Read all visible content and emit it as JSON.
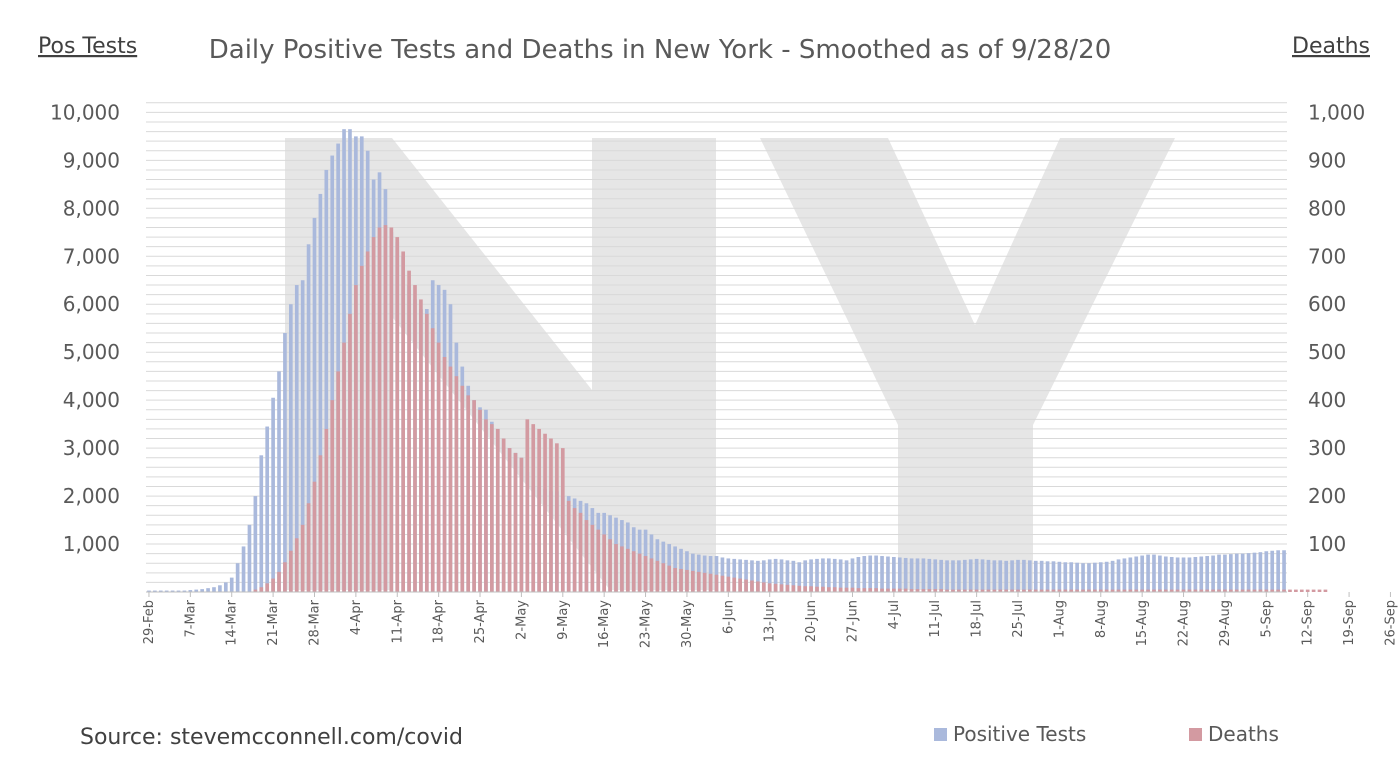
{
  "chart_data": {
    "type": "bar",
    "title": "Daily Positive Tests and Deaths in New York - Smoothed as of 9/28/20",
    "ylabel_left": "Pos Tests",
    "ylabel_right": "Deaths",
    "ylim_left": [
      0,
      10000
    ],
    "ylim_right": [
      0,
      1000
    ],
    "yticks_left": [
      "1,000",
      "2,000",
      "3,000",
      "4,000",
      "5,000",
      "6,000",
      "7,000",
      "8,000",
      "9,000",
      "10,000"
    ],
    "yticks_right": [
      "100",
      "200",
      "300",
      "400",
      "500",
      "600",
      "700",
      "800",
      "900",
      "1,000"
    ],
    "x_start": "29-Feb",
    "x_tick_labels": [
      "29-Feb",
      "7-Mar",
      "14-Mar",
      "21-Mar",
      "28-Mar",
      "4-Apr",
      "11-Apr",
      "18-Apr",
      "25-Apr",
      "2-May",
      "9-May",
      "16-May",
      "23-May",
      "30-May",
      "6-Jun",
      "13-Jun",
      "20-Jun",
      "27-Jun",
      "4-Jul",
      "11-Jul",
      "18-Jul",
      "25-Jul",
      "1-Aug",
      "8-Aug",
      "15-Aug",
      "22-Aug",
      "29-Aug",
      "5-Sep",
      "12-Sep",
      "19-Sep",
      "26-Sep"
    ],
    "grid": true,
    "legend_position": "bottom-right",
    "watermark": "NY",
    "series": [
      {
        "name": "Positive Tests",
        "axis": "left",
        "color": "#aab9dc",
        "values": [
          30,
          30,
          30,
          30,
          30,
          30,
          30,
          40,
          50,
          60,
          80,
          100,
          140,
          200,
          300,
          600,
          950,
          1400,
          2000,
          2850,
          3450,
          4050,
          4600,
          5400,
          6000,
          6400,
          6500,
          7250,
          7800,
          8300,
          8800,
          9100,
          9350,
          9650,
          9650,
          9500,
          9500,
          9200,
          8600,
          8750,
          8400,
          7500,
          7300,
          7000,
          6400,
          6100,
          5900,
          5900,
          6500,
          6400,
          6300,
          6000,
          5200,
          4700,
          4300,
          4000,
          3850,
          3800,
          3550,
          3400,
          3200,
          3000,
          2900,
          2800,
          2500,
          2200,
          2200,
          2150,
          2100,
          2100,
          2000,
          2000,
          1950,
          1900,
          1850,
          1750,
          1650,
          1650,
          1600,
          1550,
          1500,
          1450,
          1350,
          1300,
          1300,
          1200,
          1100,
          1050,
          1000,
          950,
          900,
          850,
          800,
          780,
          760,
          750,
          750,
          720,
          700,
          690,
          680,
          670,
          660,
          650,
          660,
          680,
          690,
          680,
          660,
          650,
          620,
          660,
          680,
          690,
          700,
          700,
          690,
          680,
          660,
          700,
          730,
          750,
          760,
          760,
          750,
          740,
          730,
          720,
          710,
          700,
          700,
          700,
          690,
          680,
          670,
          660,
          660,
          660,
          670,
          680,
          690,
          680,
          670,
          660,
          660,
          650,
          660,
          670,
          670,
          660,
          650,
          650,
          640,
          640,
          630,
          620,
          620,
          610,
          600,
          600,
          610,
          620,
          630,
          650,
          680,
          700,
          720,
          740,
          760,
          780,
          780,
          760,
          740,
          730,
          720,
          720,
          720,
          730,
          740,
          750,
          760,
          780,
          780,
          790,
          800,
          800,
          810,
          820,
          830,
          850,
          860,
          870,
          870
        ]
      },
      {
        "name": "Deaths",
        "axis": "right",
        "color": "#d39aa1",
        "values": [
          0,
          0,
          0,
          0,
          0,
          0,
          0,
          0,
          0,
          0,
          0,
          0,
          0,
          0,
          0,
          0,
          0,
          0,
          5,
          10,
          18,
          28,
          42,
          62,
          86,
          112,
          140,
          185,
          230,
          285,
          340,
          400,
          460,
          520,
          580,
          640,
          680,
          710,
          740,
          760,
          765,
          760,
          740,
          710,
          670,
          640,
          610,
          580,
          550,
          520,
          490,
          470,
          450,
          430,
          410,
          400,
          380,
          360,
          350,
          340,
          320,
          300,
          290,
          280,
          360,
          350,
          340,
          330,
          320,
          310,
          300,
          190,
          175,
          165,
          150,
          140,
          130,
          120,
          110,
          100,
          95,
          90,
          85,
          80,
          75,
          70,
          65,
          60,
          55,
          50,
          48,
          46,
          44,
          42,
          40,
          38,
          36,
          34,
          32,
          30,
          28,
          26,
          24,
          22,
          20,
          18,
          17,
          16,
          15,
          14,
          13,
          12,
          12,
          11,
          11,
          10,
          10,
          9,
          9,
          9,
          8,
          8,
          8,
          8,
          7,
          7,
          7,
          7,
          7,
          6,
          6,
          6,
          6,
          6,
          6,
          5,
          5,
          5,
          5,
          5,
          5,
          5,
          5,
          5,
          5,
          5,
          5,
          5,
          5,
          5,
          5,
          5,
          5,
          5,
          5,
          5,
          5,
          5,
          5,
          5,
          5,
          5,
          5,
          5,
          5,
          5,
          5,
          5,
          5,
          5,
          5,
          5,
          5,
          5,
          5,
          5,
          5,
          5,
          5,
          5,
          5,
          5,
          5,
          5,
          5,
          5,
          5,
          5,
          5,
          5,
          5,
          5,
          5,
          5,
          5,
          5,
          5,
          5,
          5,
          5
        ]
      }
    ],
    "source": "Source: stevemcconnell.com/covid"
  }
}
